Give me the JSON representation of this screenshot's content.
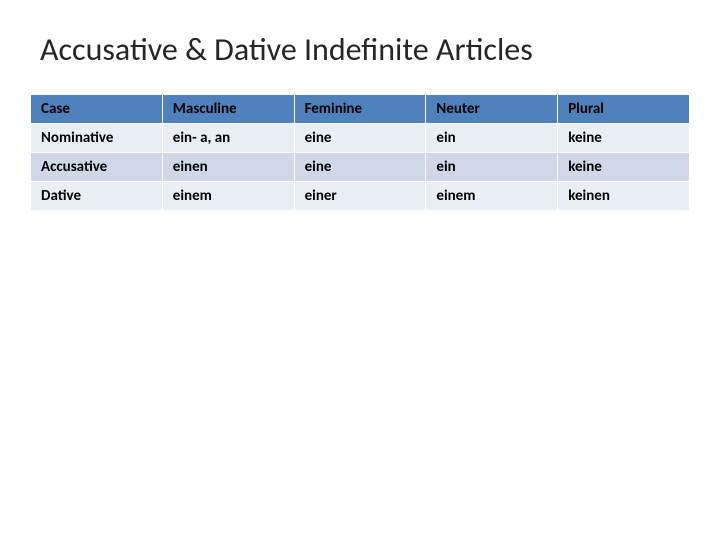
{
  "title": "Accusative & Dative Indefinite Articles",
  "table": {
    "type": "table",
    "header_bg_color": "#4f81bd",
    "row_odd_bg_color": "#e9edf4",
    "row_even_bg_color": "#d0d8e8",
    "border_color": "#ffffff",
    "font_weight": "bold",
    "font_size": 15,
    "columns": [
      "Case",
      "Masculine",
      "Feminine",
      "Neuter",
      "Plural"
    ],
    "rows": [
      [
        "Nominative",
        "ein- a, an",
        "eine",
        "ein",
        "keine"
      ],
      [
        "Accusative",
        "einen",
        "eine",
        "ein",
        "keine"
      ],
      [
        "Dative",
        "einem",
        "einer",
        "einem",
        "keinen"
      ]
    ]
  }
}
